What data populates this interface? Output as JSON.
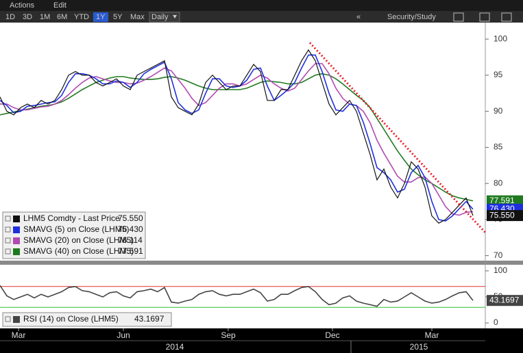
{
  "toolbar": {
    "menu": [
      "Actions",
      "Edit"
    ],
    "ranges": [
      "1D",
      "3D",
      "1M",
      "6M",
      "YTD",
      "1Y",
      "5Y",
      "Max"
    ],
    "selected_index": 5,
    "interval": "Daily",
    "collapse": "«",
    "study_button": "Security/Study"
  },
  "chart_data": [
    {
      "type": "line",
      "xlim": [
        0,
        70.8
      ],
      "ylim": [
        69.4,
        102.1
      ],
      "yticks": [
        70,
        75,
        80,
        85,
        90,
        95,
        100
      ],
      "series": [
        {
          "name": "LHM5 Comdty - Last Price",
          "color": "#111111",
          "last_value": 75.55,
          "last_label": "75.550",
          "values": [
            92,
            90,
            89.5,
            90.5,
            91,
            90.5,
            91.5,
            91,
            91.5,
            93,
            95,
            95.5,
            95,
            95,
            94,
            93.5,
            94,
            94.5,
            93.5,
            93,
            95,
            95.5,
            96,
            96.5,
            97,
            92,
            90.5,
            90,
            89.5,
            91,
            94,
            95,
            94,
            93,
            93.5,
            93.5,
            95,
            96.5,
            95.5,
            91.5,
            91.5,
            93,
            93,
            95,
            97,
            98.5,
            97,
            94,
            91,
            89.5,
            90.5,
            91.5,
            90,
            87,
            84,
            80.5,
            82,
            79.5,
            78,
            80,
            83,
            82,
            79.5,
            75.5,
            74.5,
            75,
            76,
            77,
            78,
            75.55
          ]
        },
        {
          "name": "SMAVG (5) on Close (LHM5)",
          "color": "#1f2fe0",
          "last_value": 76.43,
          "last_label": "76.430",
          "values": [
            91.5,
            90.8,
            89.8,
            90,
            90.7,
            90.8,
            91,
            91.2,
            91.3,
            92.2,
            94,
            95.2,
            95.2,
            95,
            94.5,
            93.8,
            93.8,
            94.2,
            94,
            93.3,
            94,
            95.2,
            95.8,
            96.3,
            96.8,
            94.5,
            91.2,
            90.2,
            89.7,
            90.2,
            92.5,
            94.5,
            94.5,
            93.5,
            93.3,
            93.5,
            94.3,
            95.8,
            96,
            93.5,
            91.5,
            92.2,
            93,
            94,
            96,
            97.8,
            97.8,
            95.5,
            92.5,
            90.2,
            90,
            91,
            90.8,
            88.5,
            85.5,
            82.2,
            81.5,
            80.5,
            78.8,
            79.2,
            81.5,
            82.5,
            80.8,
            77.5,
            75,
            74.8,
            75.5,
            76.5,
            77.5,
            76.43
          ]
        },
        {
          "name": "SMAVG (20) on Close (LHM5)",
          "color": "#b04ab0",
          "last_value": 76.114,
          "last_label": "76.114",
          "values": [
            91,
            91,
            90.5,
            90.2,
            90.2,
            90.4,
            90.6,
            90.7,
            91,
            91.5,
            92.3,
            93.2,
            94,
            94.6,
            94.8,
            94.5,
            94.2,
            94,
            94,
            93.8,
            93.9,
            94.3,
            94.8,
            95.4,
            96,
            95.6,
            94.4,
            93.2,
            91.8,
            90.8,
            91.2,
            92.2,
            93.2,
            93.8,
            93.8,
            93.5,
            93.8,
            94.4,
            95,
            94.6,
            93.8,
            93.2,
            92.8,
            93.2,
            94.4,
            95.6,
            96.6,
            96.6,
            95.2,
            93.2,
            91.8,
            91,
            90.8,
            90,
            88.4,
            86,
            84.2,
            82.6,
            81,
            80.2,
            80.2,
            80.8,
            80.9,
            80,
            78.4,
            76.8,
            75.8,
            75.6,
            76,
            76.114
          ]
        },
        {
          "name": "SMAVG (40) on Close (LHM5)",
          "color": "#1f7a1f",
          "last_value": 77.591,
          "last_label": "77.591",
          "values": [
            89.5,
            89.7,
            89.9,
            90.1,
            90.3,
            90.5,
            90.7,
            90.8,
            91,
            91.3,
            91.8,
            92.4,
            93,
            93.5,
            94,
            94.3,
            94.6,
            94.8,
            94.8,
            94.6,
            94.5,
            94.4,
            94.4,
            94.5,
            94.7,
            94.8,
            94.6,
            94.3,
            93.9,
            93.5,
            93.2,
            93,
            93,
            93,
            93,
            93,
            93.2,
            93.6,
            94,
            94.2,
            94.1,
            94,
            93.8,
            93.8,
            94,
            94.5,
            95,
            95.2,
            95,
            94.5,
            93.8,
            93,
            92.2,
            91.5,
            90.5,
            89,
            87.5,
            86,
            84.5,
            83.2,
            82,
            81.2,
            80.5,
            80,
            79.4,
            78.8,
            78.3,
            78,
            77.8,
            77.591
          ]
        }
      ],
      "trendline": {
        "color": "#e8202a",
        "x": [
          45.2,
          70.8
        ],
        "values": [
          99.5,
          73.2
        ]
      }
    },
    {
      "type": "line",
      "xlim": [
        0,
        70.8
      ],
      "ylim": [
        -9.1,
        110.4
      ],
      "yticks": [
        0,
        50,
        100
      ],
      "levels": [
        {
          "value": 70,
          "color": "#e0302a"
        },
        {
          "value": 30,
          "color": "#2fc02f"
        }
      ],
      "series": [
        {
          "name": "RSI (14) on Close (LHM5)",
          "color": "#444444",
          "last_value": 43.1697,
          "last_label": "43.1697",
          "values": [
            72,
            52,
            45,
            50,
            55,
            48,
            55,
            50,
            55,
            60,
            68,
            70,
            62,
            60,
            55,
            50,
            58,
            60,
            52,
            48,
            60,
            62,
            65,
            60,
            68,
            40,
            38,
            42,
            45,
            55,
            60,
            62,
            55,
            52,
            55,
            55,
            60,
            65,
            58,
            42,
            45,
            55,
            55,
            62,
            68,
            70,
            60,
            45,
            35,
            38,
            48,
            52,
            42,
            38,
            35,
            32,
            45,
            40,
            42,
            50,
            58,
            50,
            42,
            38,
            40,
            45,
            52,
            58,
            60,
            43.1697
          ]
        }
      ],
      "xticks": [
        {
          "value": 2.7,
          "label": "Mar"
        },
        {
          "value": 18,
          "label": "Jun"
        },
        {
          "value": 33.3,
          "label": "Sep"
        },
        {
          "value": 48.5,
          "label": "Dec"
        },
        {
          "value": 63,
          "label": "Mar"
        }
      ],
      "year_labels": [
        {
          "value": 25.5,
          "label": "2014"
        },
        {
          "value": 61.1,
          "label": "2015"
        }
      ]
    }
  ]
}
